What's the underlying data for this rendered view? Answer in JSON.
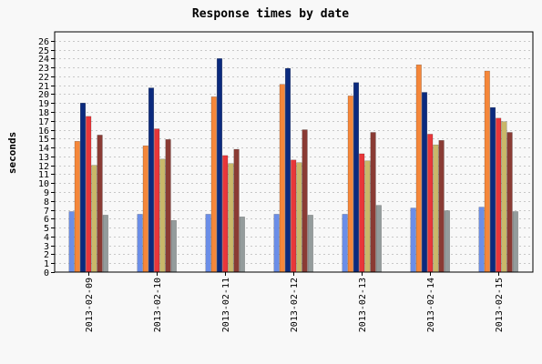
{
  "chart_data": {
    "type": "bar",
    "title": "Response times by date",
    "xlabel": "",
    "ylabel": "seconds",
    "ylim": [
      0,
      27
    ],
    "yticks": [
      0,
      1,
      2,
      3,
      4,
      5,
      6,
      7,
      8,
      9,
      10,
      11,
      12,
      13,
      14,
      15,
      16,
      17,
      18,
      19,
      20,
      21,
      22,
      23,
      24,
      25,
      26
    ],
    "grid": true,
    "legend": "none",
    "categories": [
      "2013-02-09",
      "2013-02-10",
      "2013-02-11",
      "2013-02-12",
      "2013-02-13",
      "2013-02-14",
      "2013-02-15"
    ],
    "series": [
      {
        "color": "#6b8ee8",
        "values": [
          6.8,
          6.5,
          6.5,
          6.5,
          6.5,
          7.2,
          7.3
        ]
      },
      {
        "color": "#f5873a",
        "values": [
          14.7,
          14.2,
          19.7,
          21.1,
          19.8,
          23.3,
          22.6
        ]
      },
      {
        "color": "#0b2a7e",
        "values": [
          19.0,
          20.7,
          24.0,
          22.9,
          21.3,
          20.2,
          18.5
        ]
      },
      {
        "color": "#e8373a",
        "values": [
          17.5,
          16.1,
          13.1,
          12.6,
          13.3,
          15.5,
          17.3
        ]
      },
      {
        "color": "#c9b86a",
        "values": [
          12.0,
          12.7,
          12.2,
          12.3,
          12.5,
          14.3,
          16.9
        ]
      },
      {
        "color": "#8a3b34",
        "values": [
          15.4,
          14.9,
          13.8,
          16.0,
          15.7,
          14.8,
          15.7
        ]
      },
      {
        "color": "#949c9c",
        "values": [
          6.4,
          5.8,
          6.2,
          6.4,
          7.5,
          6.9,
          6.8
        ]
      }
    ]
  }
}
